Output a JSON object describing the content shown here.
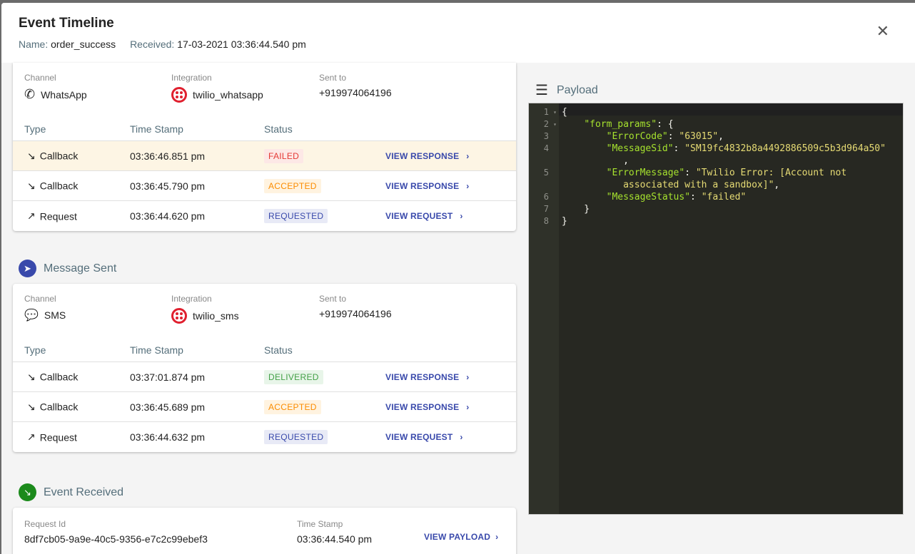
{
  "header": {
    "title": "Event Timeline",
    "name_label": "Name:",
    "name_value": "order_success",
    "received_label": "Received:",
    "received_value": "17-03-2021 03:36:44.540 pm"
  },
  "whatsapp_card": {
    "channel_label": "Channel",
    "channel": "WhatsApp",
    "integration_label": "Integration",
    "integration": "twilio_whatsapp",
    "sent_to_label": "Sent to",
    "sent_to": "+919974064196",
    "columns": [
      "Type",
      "Time Stamp",
      "Status"
    ],
    "rows": [
      {
        "type": "Callback",
        "direction": "incoming",
        "timestamp": "03:36:46.851 pm",
        "status": "FAILED",
        "action": "VIEW RESPONSE",
        "highlighted": true
      },
      {
        "type": "Callback",
        "direction": "incoming",
        "timestamp": "03:36:45.790 pm",
        "status": "ACCEPTED",
        "action": "VIEW RESPONSE"
      },
      {
        "type": "Request",
        "direction": "outgoing",
        "timestamp": "03:36:44.620 pm",
        "status": "REQUESTED",
        "action": "VIEW REQUEST"
      }
    ]
  },
  "message_sent": {
    "title": "Message Sent",
    "channel_label": "Channel",
    "channel": "SMS",
    "integration_label": "Integration",
    "integration": "twilio_sms",
    "sent_to_label": "Sent to",
    "sent_to": "+919974064196",
    "columns": [
      "Type",
      "Time Stamp",
      "Status"
    ],
    "rows": [
      {
        "type": "Callback",
        "direction": "incoming",
        "timestamp": "03:37:01.874 pm",
        "status": "DELIVERED",
        "action": "VIEW RESPONSE"
      },
      {
        "type": "Callback",
        "direction": "incoming",
        "timestamp": "03:36:45.689 pm",
        "status": "ACCEPTED",
        "action": "VIEW RESPONSE"
      },
      {
        "type": "Request",
        "direction": "outgoing",
        "timestamp": "03:36:44.632 pm",
        "status": "REQUESTED",
        "action": "VIEW REQUEST"
      }
    ]
  },
  "event_received": {
    "title": "Event Received",
    "request_id_label": "Request Id",
    "request_id": "8df7cb05-9a9e-40c5-9356-e7c2c99ebef3",
    "timestamp_label": "Time Stamp",
    "timestamp": "03:36:44.540 pm",
    "action": "VIEW PAYLOAD"
  },
  "payload": {
    "title": "Payload",
    "lines": [
      {
        "n": "1",
        "fold": true,
        "parts": [
          [
            "p",
            "{"
          ]
        ]
      },
      {
        "n": "2",
        "fold": true,
        "parts": [
          [
            "p",
            "    "
          ],
          [
            "k",
            "\"form_params\""
          ],
          [
            "p",
            ": {"
          ]
        ]
      },
      {
        "n": "3",
        "parts": [
          [
            "p",
            "        "
          ],
          [
            "k",
            "\"ErrorCode\""
          ],
          [
            "p",
            ": "
          ],
          [
            "s",
            "\"63015\""
          ],
          [
            "p",
            ","
          ]
        ]
      },
      {
        "n": "4",
        "parts": [
          [
            "p",
            "        "
          ],
          [
            "k",
            "\"MessageSid\""
          ],
          [
            "p",
            ": "
          ],
          [
            "s",
            "\"SM19fc4832b8a4492886509c5b3d964a50\""
          ]
        ],
        "wrap": [
          [
            "p",
            "           ,"
          ]
        ]
      },
      {
        "n": "5",
        "parts": [
          [
            "p",
            "        "
          ],
          [
            "k",
            "\"ErrorMessage\""
          ],
          [
            "p",
            ": "
          ],
          [
            "s",
            "\"Twilio Error: [Account not"
          ]
        ],
        "wrap": [
          [
            "s",
            "           associated with a sandbox]\""
          ],
          [
            "p",
            ","
          ]
        ]
      },
      {
        "n": "6",
        "parts": [
          [
            "p",
            "        "
          ],
          [
            "k",
            "\"MessageStatus\""
          ],
          [
            "p",
            ": "
          ],
          [
            "s",
            "\"failed\""
          ]
        ]
      },
      {
        "n": "7",
        "parts": [
          [
            "p",
            "    }"
          ]
        ]
      },
      {
        "n": "8",
        "parts": [
          [
            "p",
            "}"
          ]
        ]
      }
    ]
  },
  "colors": {
    "failed": "#e53935",
    "failed_bg": "#fde8e6",
    "accepted": "#fb8c00",
    "accepted_bg": "#fff3e0",
    "requested": "#3949ab",
    "requested_bg": "#e8eaf6",
    "delivered": "#43a047",
    "delivered_bg": "#e8f5e9",
    "message_sent_icon": "#3949ab",
    "event_received_icon": "#1b8a1b"
  },
  "icons": {
    "close": "close-icon",
    "whatsapp": "whatsapp-icon",
    "sms": "sms-icon",
    "twilio": "twilio-icon",
    "payload": "menu-lines-icon",
    "message_sent": "send-icon",
    "event_received": "arrow-down-right-icon"
  }
}
